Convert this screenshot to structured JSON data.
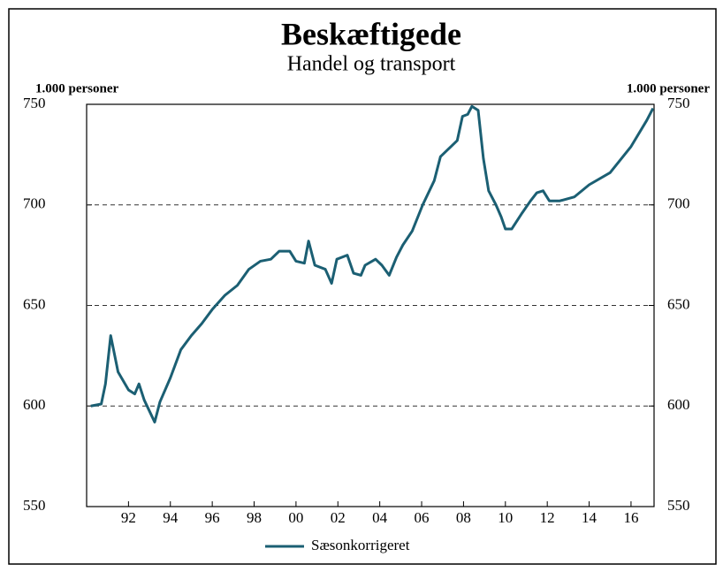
{
  "chart_data": {
    "type": "line",
    "title": "Beskæftigede",
    "subtitle": "Handel og transport",
    "y_label": "1.000 personer",
    "y2_label": "1.000 personer",
    "x": [
      1990.2,
      1990.7,
      1990.9,
      1991.15,
      1991.5,
      1992,
      1992.3,
      1992.5,
      1992.75,
      1993.25,
      1993.5,
      1994,
      1994.5,
      1995,
      1995.5,
      1996,
      1996.6,
      1997.2,
      1997.75,
      1998.3,
      1998.8,
      1999.2,
      1999.7,
      2000,
      2000.4,
      2000.6,
      2000.9,
      2001.4,
      2001.7,
      2001.95,
      2002.45,
      2002.75,
      2003.1,
      2003.3,
      2003.8,
      2004.1,
      2004.45,
      2004.8,
      2005.1,
      2005.55,
      2006.05,
      2006.6,
      2006.9,
      2007.4,
      2007.7,
      2007.95,
      2008.2,
      2008.4,
      2008.7,
      2008.95,
      2009.2,
      2009.55,
      2009.8,
      2010,
      2010.3,
      2010.8,
      2011.2,
      2011.5,
      2011.8,
      2012.1,
      2012.6,
      2013.3,
      2014,
      2015,
      2016,
      2016.75,
      2017.05
    ],
    "series": [
      {
        "name": "Sæsonkorrigeret",
        "color": "#1b5f73",
        "values": [
          600,
          601,
          611,
          635,
          617,
          608,
          606,
          611,
          603,
          592,
          602,
          614,
          628,
          635,
          641,
          648,
          655,
          660,
          668,
          672,
          673,
          677,
          677,
          672,
          671,
          682,
          670,
          668,
          661,
          673,
          675,
          666,
          665,
          670,
          673,
          670,
          665,
          674,
          680,
          687,
          700,
          712,
          724,
          729,
          732,
          744,
          745,
          749,
          747,
          723,
          707,
          700,
          694,
          688,
          688,
          696,
          702,
          706,
          707,
          702,
          702,
          704,
          710,
          716,
          729,
          742,
          748
        ]
      }
    ],
    "xlim": [
      1990,
      2017.1
    ],
    "xticks": [
      {
        "value": 1992,
        "label": "92"
      },
      {
        "value": 1994,
        "label": "94"
      },
      {
        "value": 1996,
        "label": "96"
      },
      {
        "value": 1998,
        "label": "98"
      },
      {
        "value": 2000,
        "label": "00"
      },
      {
        "value": 2002,
        "label": "02"
      },
      {
        "value": 2004,
        "label": "04"
      },
      {
        "value": 2006,
        "label": "06"
      },
      {
        "value": 2008,
        "label": "08"
      },
      {
        "value": 2010,
        "label": "10"
      },
      {
        "value": 2012,
        "label": "12"
      },
      {
        "value": 2014,
        "label": "14"
      },
      {
        "value": 2016,
        "label": "16"
      }
    ],
    "ylim": [
      550,
      750
    ],
    "yticks": [
      550,
      600,
      650,
      700,
      750
    ],
    "y2lim": [
      550,
      750
    ],
    "y2ticks": [
      550,
      600,
      650,
      700,
      750
    ],
    "grid": true
  }
}
